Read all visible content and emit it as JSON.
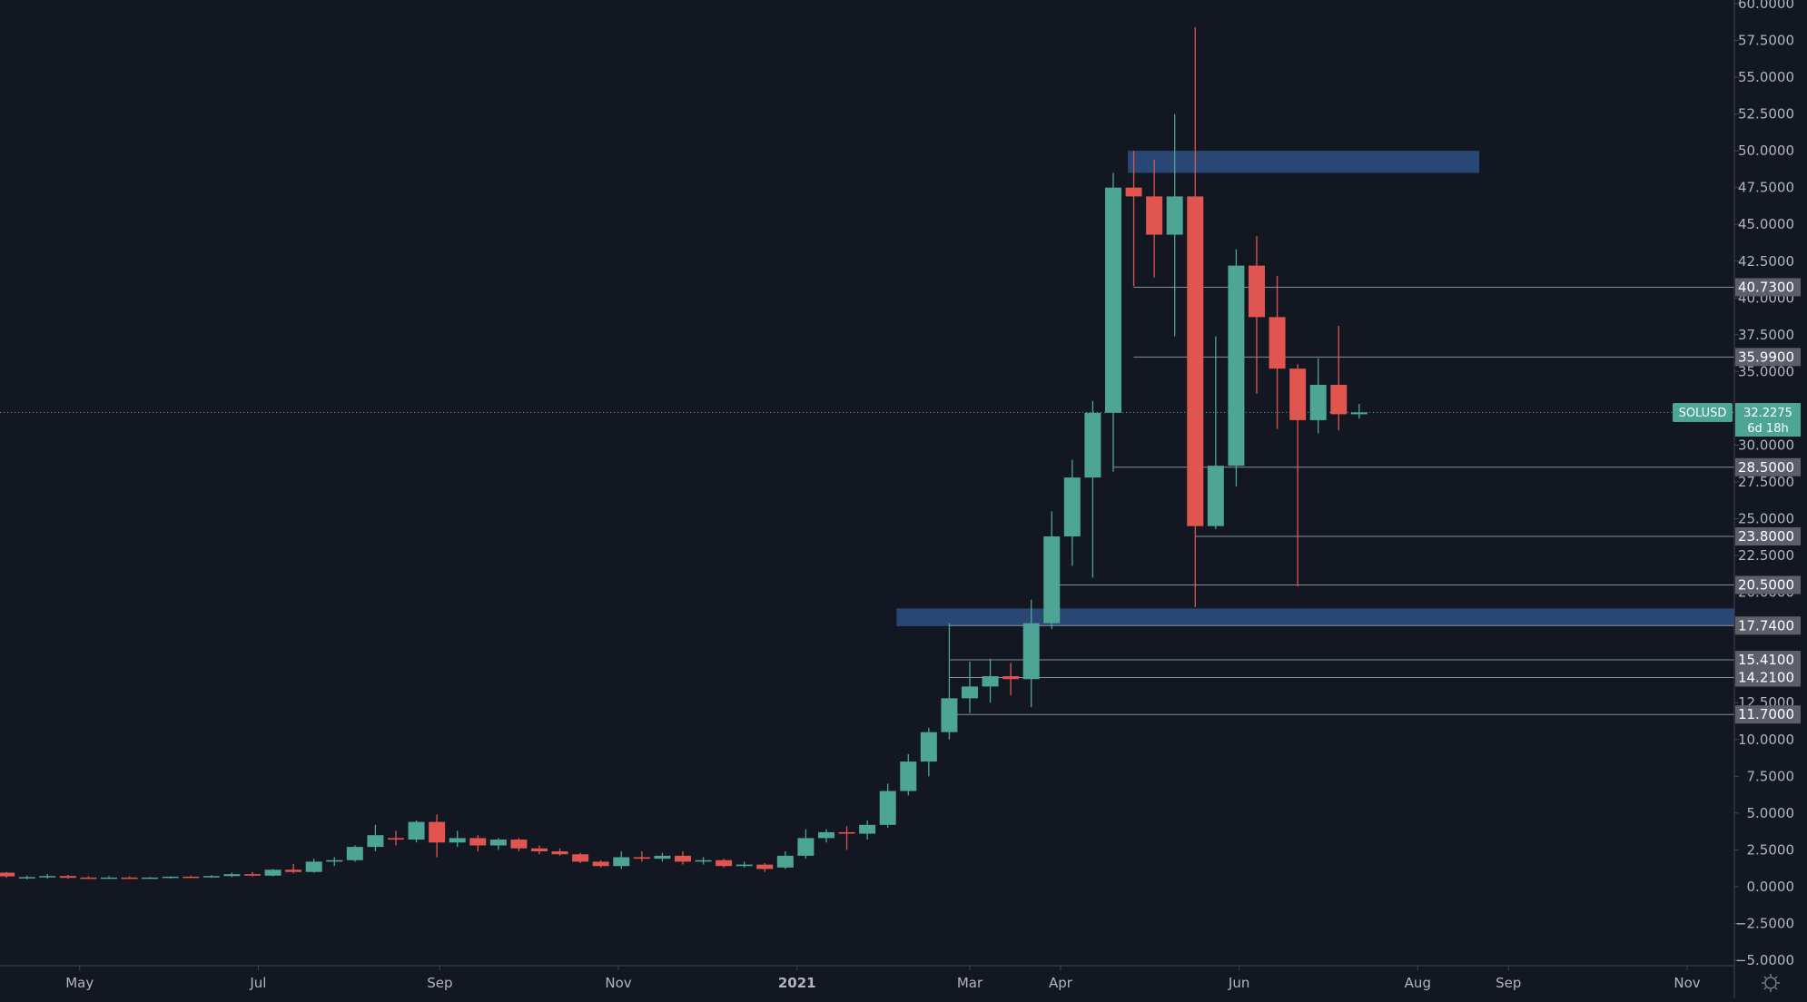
{
  "chart_data": {
    "type": "candlestick",
    "symbol": "SOLUSD",
    "last_price": "32.2275",
    "countdown": "6d 18h",
    "y_axis": {
      "range": [
        -5,
        60
      ],
      "ticks": [
        "60.0000",
        "57.5000",
        "55.0000",
        "52.5000",
        "50.0000",
        "47.5000",
        "45.0000",
        "42.5000",
        "40.0000",
        "37.5000",
        "35.0000",
        "32.5000",
        "30.0000",
        "27.5000",
        "25.0000",
        "22.5000",
        "20.0000",
        "17.5000",
        "15.0000",
        "12.5000",
        "10.0000",
        "7.5000",
        "5.0000",
        "2.5000",
        "0.0000",
        "−2.5000",
        "−5.0000"
      ]
    },
    "x_axis": {
      "range": [
        "2020-04-01",
        "2021-12-01"
      ],
      "ticks": [
        {
          "label": "May",
          "date": "2020-05-01",
          "bold": false
        },
        {
          "label": "Jul",
          "date": "2020-07-01",
          "bold": false
        },
        {
          "label": "Sep",
          "date": "2020-09-01",
          "bold": false
        },
        {
          "label": "Nov",
          "date": "2020-11-01",
          "bold": false
        },
        {
          "label": "2021",
          "date": "2021-01-01",
          "bold": true
        },
        {
          "label": "Mar",
          "date": "2021-03-01",
          "bold": false
        },
        {
          "label": "Apr",
          "date": "2021-04-01",
          "bold": false
        },
        {
          "label": "Jun",
          "date": "2021-06-01",
          "bold": false
        },
        {
          "label": "Aug",
          "date": "2021-08-01",
          "bold": false
        },
        {
          "label": "Sep",
          "date": "2021-09-01",
          "bold": false
        },
        {
          "label": "Nov",
          "date": "2021-11-01",
          "bold": false
        }
      ]
    },
    "candles": [
      {
        "date": "2020-04-06",
        "o": 0.95,
        "h": 1.0,
        "l": 0.6,
        "c": 0.7
      },
      {
        "date": "2020-04-13",
        "o": 0.6,
        "h": 0.75,
        "l": 0.5,
        "c": 0.65
      },
      {
        "date": "2020-04-20",
        "o": 0.65,
        "h": 0.85,
        "l": 0.55,
        "c": 0.72
      },
      {
        "date": "2020-04-27",
        "o": 0.72,
        "h": 0.8,
        "l": 0.55,
        "c": 0.6
      },
      {
        "date": "2020-05-04",
        "o": 0.62,
        "h": 0.7,
        "l": 0.55,
        "c": 0.6
      },
      {
        "date": "2020-05-11",
        "o": 0.6,
        "h": 0.7,
        "l": 0.55,
        "c": 0.62
      },
      {
        "date": "2020-05-18",
        "o": 0.62,
        "h": 0.7,
        "l": 0.52,
        "c": 0.58
      },
      {
        "date": "2020-05-25",
        "o": 0.58,
        "h": 0.66,
        "l": 0.55,
        "c": 0.62
      },
      {
        "date": "2020-06-01",
        "o": 0.62,
        "h": 0.7,
        "l": 0.55,
        "c": 0.68
      },
      {
        "date": "2020-06-08",
        "o": 0.68,
        "h": 0.75,
        "l": 0.6,
        "c": 0.64
      },
      {
        "date": "2020-06-15",
        "o": 0.64,
        "h": 0.78,
        "l": 0.6,
        "c": 0.72
      },
      {
        "date": "2020-06-22",
        "o": 0.72,
        "h": 0.95,
        "l": 0.65,
        "c": 0.85
      },
      {
        "date": "2020-06-29",
        "o": 0.85,
        "h": 1.0,
        "l": 0.7,
        "c": 0.75
      },
      {
        "date": "2020-07-06",
        "o": 0.75,
        "h": 1.2,
        "l": 0.7,
        "c": 1.15
      },
      {
        "date": "2020-07-13",
        "o": 1.15,
        "h": 1.55,
        "l": 0.9,
        "c": 1.0
      },
      {
        "date": "2020-07-20",
        "o": 1.0,
        "h": 1.9,
        "l": 0.95,
        "c": 1.7
      },
      {
        "date": "2020-07-27",
        "o": 1.7,
        "h": 2.0,
        "l": 1.4,
        "c": 1.8
      },
      {
        "date": "2020-08-03",
        "o": 1.8,
        "h": 2.8,
        "l": 1.7,
        "c": 2.7
      },
      {
        "date": "2020-08-10",
        "o": 2.7,
        "h": 4.2,
        "l": 2.4,
        "c": 3.5
      },
      {
        "date": "2020-08-17",
        "o": 3.3,
        "h": 3.8,
        "l": 2.8,
        "c": 3.2
      },
      {
        "date": "2020-08-24",
        "o": 3.2,
        "h": 4.5,
        "l": 3.0,
        "c": 4.4
      },
      {
        "date": "2020-08-31",
        "o": 4.4,
        "h": 4.9,
        "l": 2.0,
        "c": 3.0
      },
      {
        "date": "2020-09-07",
        "o": 3.0,
        "h": 3.8,
        "l": 2.7,
        "c": 3.3
      },
      {
        "date": "2020-09-14",
        "o": 3.3,
        "h": 3.5,
        "l": 2.4,
        "c": 2.8
      },
      {
        "date": "2020-09-21",
        "o": 2.8,
        "h": 3.3,
        "l": 2.5,
        "c": 3.2
      },
      {
        "date": "2020-09-28",
        "o": 3.2,
        "h": 3.3,
        "l": 2.4,
        "c": 2.6
      },
      {
        "date": "2020-10-05",
        "o": 2.6,
        "h": 2.8,
        "l": 2.2,
        "c": 2.4
      },
      {
        "date": "2020-10-12",
        "o": 2.4,
        "h": 2.6,
        "l": 2.1,
        "c": 2.2
      },
      {
        "date": "2020-10-19",
        "o": 2.2,
        "h": 2.3,
        "l": 1.6,
        "c": 1.7
      },
      {
        "date": "2020-10-26",
        "o": 1.7,
        "h": 1.8,
        "l": 1.3,
        "c": 1.4
      },
      {
        "date": "2020-11-02",
        "o": 1.4,
        "h": 2.4,
        "l": 1.2,
        "c": 2.0
      },
      {
        "date": "2020-11-09",
        "o": 2.0,
        "h": 2.4,
        "l": 1.7,
        "c": 1.9
      },
      {
        "date": "2020-11-16",
        "o": 1.9,
        "h": 2.3,
        "l": 1.7,
        "c": 2.1
      },
      {
        "date": "2020-11-23",
        "o": 2.1,
        "h": 2.4,
        "l": 1.5,
        "c": 1.7
      },
      {
        "date": "2020-11-30",
        "o": 1.7,
        "h": 2.0,
        "l": 1.5,
        "c": 1.8
      },
      {
        "date": "2020-12-07",
        "o": 1.8,
        "h": 1.9,
        "l": 1.3,
        "c": 1.4
      },
      {
        "date": "2020-12-14",
        "o": 1.4,
        "h": 1.7,
        "l": 1.3,
        "c": 1.5
      },
      {
        "date": "2020-12-21",
        "o": 1.5,
        "h": 1.6,
        "l": 1.0,
        "c": 1.2
      },
      {
        "date": "2020-12-28",
        "o": 1.3,
        "h": 2.4,
        "l": 1.2,
        "c": 2.1
      },
      {
        "date": "2021-01-04",
        "o": 2.1,
        "h": 3.9,
        "l": 1.9,
        "c": 3.3
      },
      {
        "date": "2021-01-11",
        "o": 3.3,
        "h": 3.9,
        "l": 3.0,
        "c": 3.7
      },
      {
        "date": "2021-01-18",
        "o": 3.7,
        "h": 4.1,
        "l": 2.5,
        "c": 3.6
      },
      {
        "date": "2021-01-25",
        "o": 3.6,
        "h": 4.5,
        "l": 3.2,
        "c": 4.2
      },
      {
        "date": "2021-02-01",
        "o": 4.2,
        "h": 7.0,
        "l": 4.0,
        "c": 6.5
      },
      {
        "date": "2021-02-08",
        "o": 6.5,
        "h": 9.0,
        "l": 6.2,
        "c": 8.5
      },
      {
        "date": "2021-02-15",
        "o": 8.5,
        "h": 10.8,
        "l": 7.5,
        "c": 10.5
      },
      {
        "date": "2021-02-22",
        "o": 10.5,
        "h": 17.9,
        "l": 10.0,
        "c": 12.8
      },
      {
        "date": "2021-03-01",
        "o": 12.8,
        "h": 15.3,
        "l": 11.8,
        "c": 13.6
      },
      {
        "date": "2021-03-08",
        "o": 13.6,
        "h": 15.5,
        "l": 12.5,
        "c": 14.3
      },
      {
        "date": "2021-03-15",
        "o": 14.3,
        "h": 15.2,
        "l": 13.0,
        "c": 14.1
      },
      {
        "date": "2021-03-22",
        "o": 14.1,
        "h": 19.5,
        "l": 12.2,
        "c": 17.9
      },
      {
        "date": "2021-03-29",
        "o": 17.9,
        "h": 25.5,
        "l": 17.5,
        "c": 23.8
      },
      {
        "date": "2021-04-05",
        "o": 23.8,
        "h": 29.0,
        "l": 21.8,
        "c": 27.8
      },
      {
        "date": "2021-04-12",
        "o": 27.8,
        "h": 33.0,
        "l": 21.0,
        "c": 32.2
      },
      {
        "date": "2021-04-19",
        "o": 32.2,
        "h": 48.5,
        "l": 28.2,
        "c": 47.5
      },
      {
        "date": "2021-04-26",
        "o": 47.5,
        "h": 50.0,
        "l": 40.8,
        "c": 46.9
      },
      {
        "date": "2021-05-03",
        "o": 46.9,
        "h": 49.4,
        "l": 41.4,
        "c": 44.3
      },
      {
        "date": "2021-05-10",
        "o": 44.3,
        "h": 52.5,
        "l": 37.4,
        "c": 46.9
      },
      {
        "date": "2021-05-17",
        "o": 46.9,
        "h": 58.4,
        "l": 19.0,
        "c": 24.5
      },
      {
        "date": "2021-05-24",
        "o": 24.5,
        "h": 37.4,
        "l": 24.3,
        "c": 28.6
      },
      {
        "date": "2021-05-31",
        "o": 28.6,
        "h": 43.3,
        "l": 27.2,
        "c": 42.2
      },
      {
        "date": "2021-06-07",
        "o": 42.2,
        "h": 44.2,
        "l": 33.5,
        "c": 38.7
      },
      {
        "date": "2021-06-14",
        "o": 38.7,
        "h": 41.5,
        "l": 31.1,
        "c": 35.2
      },
      {
        "date": "2021-06-21",
        "o": 35.2,
        "h": 35.5,
        "l": 20.4,
        "c": 31.7
      },
      {
        "date": "2021-06-28",
        "o": 31.7,
        "h": 35.9,
        "l": 30.8,
        "c": 34.1
      },
      {
        "date": "2021-07-05",
        "o": 34.1,
        "h": 38.1,
        "l": 31.0,
        "c": 32.1
      },
      {
        "date": "2021-07-12",
        "o": 32.1,
        "h": 32.8,
        "l": 31.8,
        "c": 32.2275
      }
    ],
    "zones": [
      {
        "date_from": "2021-04-24",
        "date_to": "2021-08-22",
        "low": 48.5,
        "high": 50.0
      },
      {
        "date_from": "2021-02-04",
        "date_to": "2021-12-01",
        "low": 17.7,
        "high": 18.9
      }
    ],
    "levels": [
      {
        "label": "40.7300",
        "value": 40.73,
        "from_date": "2021-04-26"
      },
      {
        "label": "35.9900",
        "value": 35.99,
        "from_date": "2021-04-26"
      },
      {
        "label": "28.5000",
        "value": 28.5,
        "from_date": "2021-04-19"
      },
      {
        "label": "23.8000",
        "value": 23.8,
        "from_date": "2021-05-17"
      },
      {
        "label": "20.5000",
        "value": 20.5,
        "from_date": "2021-03-29"
      },
      {
        "label": "17.7400",
        "value": 17.74,
        "from_date": "2021-02-22"
      },
      {
        "label": "15.4100",
        "value": 15.41,
        "from_date": "2021-02-22"
      },
      {
        "label": "14.2100",
        "value": 14.21,
        "from_date": "2021-02-22"
      },
      {
        "label": "11.7000",
        "value": 11.7,
        "from_date": "2021-02-22"
      }
    ],
    "colors": {
      "background": "#131722",
      "up": "#4DA593",
      "down": "#E0554F",
      "zone": "#2B4C7E",
      "level_line": "#8A8E99",
      "level_label_bg": "#5D606B",
      "axis_text": "#B2B5BE",
      "price_line": "#4DA593"
    },
    "grid": false
  }
}
